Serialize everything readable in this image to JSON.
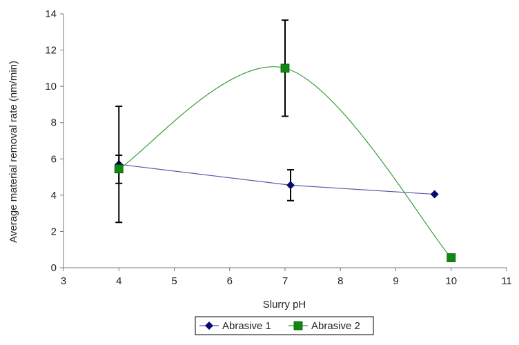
{
  "chart_data": {
    "type": "scatter",
    "title": "",
    "xlabel": "Slurry pH",
    "ylabel": "Average material removal rate (nm/min)",
    "xlim": [
      3,
      11
    ],
    "ylim": [
      0,
      14
    ],
    "xticks": [
      3,
      4,
      5,
      6,
      7,
      8,
      9,
      10,
      11
    ],
    "yticks": [
      0,
      2,
      4,
      6,
      8,
      10,
      12,
      14
    ],
    "grid": false,
    "legend_position": "bottom",
    "series": [
      {
        "name": "Abrasive 1",
        "color": "#0a0a6e",
        "line_color": "#5a5aa8",
        "marker": "diamond",
        "line": "straight",
        "x": [
          4,
          7.1,
          9.7
        ],
        "y": [
          5.7,
          4.55,
          4.05
        ],
        "error_low": [
          4.65,
          3.7,
          null
        ],
        "error_high": [
          6.2,
          5.4,
          null
        ]
      },
      {
        "name": "Abrasive 2",
        "color": "#118811",
        "line_color": "#3a9a3a",
        "marker": "square",
        "line": "smooth",
        "x": [
          4,
          7,
          10
        ],
        "y": [
          5.45,
          11.0,
          0.55
        ],
        "error_low": [
          2.5,
          8.35,
          null
        ],
        "error_high": [
          8.9,
          13.65,
          null
        ]
      }
    ]
  }
}
